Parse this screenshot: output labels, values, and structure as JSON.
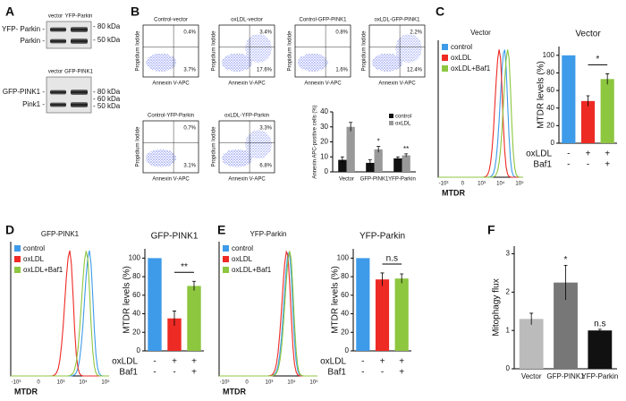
{
  "figure": {
    "panel_labels": [
      "A",
      "B",
      "C",
      "D",
      "E",
      "F"
    ],
    "blots": [
      {
        "lanes": [
          "vector",
          "YFP-Parkin"
        ],
        "bands": [
          "YFP- Parkin -",
          "Parkin -"
        ],
        "markers": [
          "- 80 kDa",
          "- 50 kDa"
        ]
      },
      {
        "lanes": [
          "vector",
          "GFP-PINK1"
        ],
        "bands": [
          "GFP-PINK1 -",
          "Pink1 -"
        ],
        "markers": [
          "- 80 kDa",
          "- 60 kDa",
          "- 50 kDa"
        ]
      }
    ],
    "flow": {
      "ylabel": "Propidium Iodide",
      "xlabel": "Annexin V-APC",
      "plots": [
        {
          "title": "Control-vector",
          "upper_right": "0.4%",
          "lower_right": "3.7%"
        },
        {
          "title": "oxLDL-vector",
          "upper_right": "3.4%",
          "lower_right": "17.6%"
        },
        {
          "title": "Control-GFP-PINK1",
          "upper_right": "0.8%",
          "lower_right": "1.6%"
        },
        {
          "title": "oxLDL-GFP-PINK1",
          "upper_right": "2.2%",
          "lower_right": "12.4%"
        },
        {
          "title": "Control-YFP-Parkin",
          "upper_right": "0.7%",
          "lower_right": "3.1%"
        },
        {
          "title": "oxLDL-YFP-Parkin",
          "upper_right": "3.3%",
          "lower_right": "6.8%"
        }
      ]
    },
    "histograms": [
      {
        "title": "Vector",
        "xlabel": "MTDR",
        "xticks": [
          "-10³",
          "0",
          "10³",
          "10⁴",
          "10⁵"
        ]
      },
      {
        "title": "GFP-PINK1",
        "xlabel": "MTDR",
        "xticks": [
          "-10³",
          "0",
          "10³",
          "10⁴",
          "10⁵"
        ]
      },
      {
        "title": "YFP-Parkin",
        "xlabel": "MTDR",
        "xticks": [
          "-10³",
          "0",
          "10³",
          "10⁴",
          "10⁵"
        ]
      }
    ]
  },
  "chart_data": [
    {
      "type": "bar",
      "ylabel": "Annexin APC-positive cells (%)",
      "categories": [
        "Vector",
        "GFP-PINK1",
        "YFP-Parkin"
      ],
      "series": [
        {
          "name": "control",
          "color": "#111111",
          "values": [
            8,
            6,
            9
          ],
          "errors": [
            2,
            2,
            1
          ]
        },
        {
          "name": "oxLDL",
          "color": "#999999",
          "values": [
            30,
            15,
            11
          ],
          "errors": [
            3,
            2,
            1
          ],
          "annotations": [
            null,
            "*",
            "**"
          ]
        }
      ],
      "ylim": [
        0,
        40
      ],
      "yticks": [
        0,
        10,
        20,
        30,
        40
      ],
      "legend": "upper-right"
    },
    {
      "type": "bar",
      "title": "Vector",
      "ylabel": "MTDR levels (%)",
      "categories": [
        "control",
        "oxLDL",
        "oxLDL+Baf1"
      ],
      "colors": [
        "#3d9be9",
        "#ee2a24",
        "#8dc63f"
      ],
      "values": [
        100,
        48,
        73
      ],
      "errors": [
        0,
        6,
        6
      ],
      "bracket": "*",
      "treatments": [
        {
          "name": "oxLDL",
          "signs": [
            "-",
            "+",
            "+"
          ]
        },
        {
          "name": "Baf1",
          "signs": [
            "-",
            "-",
            "+"
          ]
        }
      ],
      "ylim": [
        0,
        110
      ],
      "yticks": [
        0,
        20,
        40,
        60,
        80,
        100
      ]
    },
    {
      "type": "bar",
      "title": "GFP-PINK1",
      "ylabel": "MTDR levels (%)",
      "categories": [
        "control",
        "oxLDL",
        "oxLDL+Baf1"
      ],
      "colors": [
        "#3d9be9",
        "#ee2a24",
        "#8dc63f"
      ],
      "values": [
        100,
        35,
        70
      ],
      "errors": [
        0,
        8,
        5
      ],
      "bracket": "**",
      "treatments": [
        {
          "name": "oxLDL",
          "signs": [
            "-",
            "+",
            "+"
          ]
        },
        {
          "name": "Baf1",
          "signs": [
            "-",
            "-",
            "+"
          ]
        }
      ],
      "ylim": [
        0,
        110
      ],
      "yticks": [
        0,
        20,
        40,
        60,
        80,
        100
      ]
    },
    {
      "type": "bar",
      "title": "YFP-Parkin",
      "ylabel": "MTDR levels (%)",
      "categories": [
        "control",
        "oxLDL",
        "oxLDL+Baf1"
      ],
      "colors": [
        "#3d9be9",
        "#ee2a24",
        "#8dc63f"
      ],
      "values": [
        100,
        77,
        78
      ],
      "errors": [
        0,
        7,
        5
      ],
      "bracket": "n.s",
      "treatments": [
        {
          "name": "oxLDL",
          "signs": [
            "-",
            "+",
            "+"
          ]
        },
        {
          "name": "Baf1",
          "signs": [
            "-",
            "-",
            "+"
          ]
        }
      ],
      "ylim": [
        0,
        110
      ],
      "yticks": [
        0,
        20,
        40,
        60,
        80,
        100
      ]
    },
    {
      "type": "bar",
      "ylabel": "Mitophagy flux",
      "categories": [
        "Vector",
        "GFP-PINK1",
        "YFP-Parkin"
      ],
      "colors": [
        "#bbbbbb",
        "#777777",
        "#111111"
      ],
      "values": [
        1.3,
        2.25,
        1.0
      ],
      "errors": [
        0.15,
        0.45,
        0.03
      ],
      "annotations": [
        null,
        "*",
        "n.s"
      ],
      "ylim": [
        0,
        3.2
      ],
      "yticks": [
        0,
        1,
        2,
        3
      ]
    }
  ]
}
